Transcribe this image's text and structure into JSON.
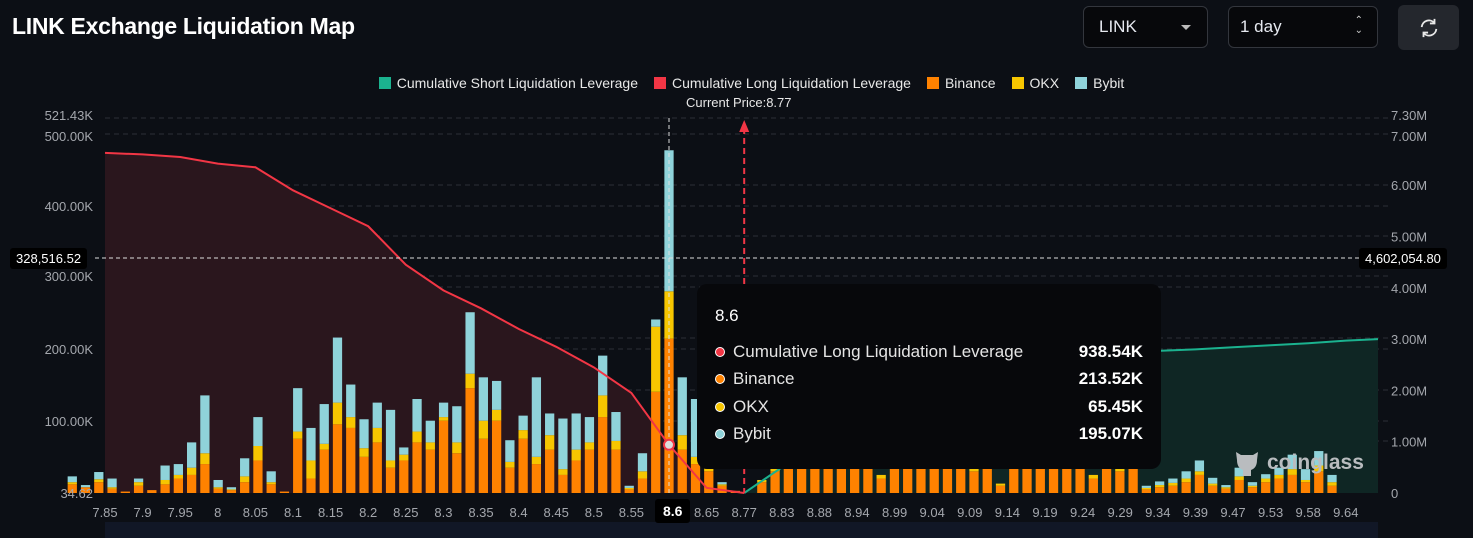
{
  "header": {
    "title": "LINK Exchange Liquidation Map",
    "coin_select": "LINK",
    "period_select": "1 day",
    "refresh_icon": "refresh-icon"
  },
  "legend": [
    {
      "label": "Cumulative Short Liquidation Leverage",
      "color": "#1bb28f"
    },
    {
      "label": "Cumulative Long Liquidation Leverage",
      "color": "#f23645"
    },
    {
      "label": "Binance",
      "color": "#ff8200"
    },
    {
      "label": "OKX",
      "color": "#f7c600"
    },
    {
      "label": "Bybit",
      "color": "#8fd3da"
    }
  ],
  "current_price_label": "Current Price:8.77",
  "crosshair": {
    "left_value": "328,516.52",
    "right_value": "4,602,054.80",
    "x_label": "8.6"
  },
  "tooltip": {
    "title": "8.6",
    "rows": [
      {
        "label": "Cumulative Long Liquidation Leverage",
        "value": "938.54K",
        "color": "#f23645"
      },
      {
        "label": "Binance",
        "value": "213.52K",
        "color": "#ff8200"
      },
      {
        "label": "OKX",
        "value": "65.45K",
        "color": "#f7c600"
      },
      {
        "label": "Bybit",
        "value": "195.07K",
        "color": "#8fd3da"
      }
    ]
  },
  "watermark": "coinglass",
  "chart_data": {
    "type": "bar",
    "grid": true,
    "legend_placement": "top-center",
    "current_price": 8.77,
    "x_tick_labels": [
      "7.85",
      "7.9",
      "7.95",
      "8",
      "8.05",
      "8.1",
      "8.15",
      "8.2",
      "8.25",
      "8.3",
      "8.35",
      "8.4",
      "8.45",
      "8.5",
      "8.55",
      "8.6",
      "8.65",
      "8.77",
      "8.83",
      "8.88",
      "8.94",
      "8.99",
      "9.04",
      "9.09",
      "9.14",
      "9.19",
      "9.24",
      "9.29",
      "9.34",
      "9.39",
      "9.47",
      "9.53",
      "9.58",
      "9.64"
    ],
    "left_axis": {
      "ticks": [
        "34.62",
        "100.00K",
        "200.00K",
        "300.00K",
        "400.00K",
        "500.00K",
        "521.43K"
      ],
      "range": [
        34.62,
        521430
      ]
    },
    "right_axis": {
      "ticks": [
        "0",
        "1.00M",
        "2.00M",
        "3.00M",
        "4.00M",
        "5.00M",
        "6.00M",
        "7.00M",
        "7.30M"
      ],
      "range": [
        0,
        7300000
      ]
    },
    "bars_unit": "K",
    "series": [
      {
        "name": "Binance",
        "values": [
          12,
          8,
          15,
          6,
          2,
          10,
          4,
          12,
          20,
          25,
          40,
          6,
          4,
          15,
          45,
          12,
          2,
          75,
          20,
          60,
          95,
          90,
          50,
          70,
          35,
          45,
          70,
          60,
          100,
          55,
          145,
          75,
          100,
          35,
          75,
          40,
          60,
          25,
          45,
          60,
          105,
          60,
          5,
          20,
          140,
          213.52,
          60,
          40,
          30,
          10,
          3,
          0,
          15,
          30,
          45,
          50,
          48,
          50,
          45,
          40,
          50,
          20,
          48,
          50,
          45,
          40,
          50,
          45,
          30,
          48,
          10,
          50,
          45,
          48,
          50,
          45,
          48,
          20,
          45,
          30,
          50,
          5,
          8,
          10,
          15,
          25,
          10,
          6,
          18,
          8,
          15,
          20,
          25,
          15,
          30,
          10
        ]
      },
      {
        "name": "OKX",
        "values": [
          3,
          0,
          4,
          2,
          0,
          5,
          0,
          6,
          5,
          10,
          15,
          2,
          1,
          8,
          20,
          3,
          0,
          10,
          25,
          8,
          30,
          15,
          12,
          20,
          10,
          8,
          15,
          10,
          5,
          15,
          20,
          25,
          15,
          8,
          12,
          10,
          20,
          8,
          15,
          10,
          30,
          12,
          2,
          10,
          90,
          65.45,
          20,
          10,
          5,
          2,
          0,
          0,
          3,
          5,
          5,
          5,
          5,
          5,
          5,
          5,
          5,
          5,
          5,
          5,
          5,
          5,
          5,
          5,
          5,
          5,
          3,
          5,
          5,
          5,
          5,
          5,
          5,
          5,
          5,
          5,
          5,
          2,
          3,
          4,
          5,
          5,
          3,
          2,
          5,
          2,
          5,
          5,
          8,
          3,
          8,
          5
        ]
      },
      {
        "name": "Bybit",
        "values": [
          8,
          3,
          10,
          12,
          0,
          5,
          0,
          20,
          15,
          35,
          80,
          10,
          3,
          25,
          40,
          15,
          0,
          60,
          45,
          55,
          90,
          45,
          40,
          35,
          70,
          10,
          45,
          30,
          20,
          50,
          85,
          60,
          40,
          30,
          20,
          110,
          30,
          70,
          50,
          35,
          55,
          40,
          3,
          25,
          10,
          195.07,
          80,
          80,
          10,
          3,
          0,
          0,
          0,
          0,
          0,
          0,
          0,
          0,
          0,
          0,
          0,
          0,
          0,
          0,
          0,
          0,
          0,
          0,
          0,
          0,
          0,
          0,
          0,
          0,
          0,
          0,
          0,
          0,
          0,
          0,
          0,
          3,
          5,
          6,
          10,
          15,
          8,
          3,
          12,
          5,
          6,
          10,
          20,
          15,
          20,
          10
        ]
      }
    ],
    "lines": [
      {
        "name": "Cumulative Long Liquidation Leverage",
        "unit": "M",
        "points": [
          [
            "7.85",
            6.63
          ],
          [
            "7.9",
            6.6
          ],
          [
            "7.95",
            6.55
          ],
          [
            "8",
            6.42
          ],
          [
            "8.05",
            6.35
          ],
          [
            "8.1",
            5.9
          ],
          [
            "8.15",
            5.55
          ],
          [
            "8.2",
            5.2
          ],
          [
            "8.25",
            4.45
          ],
          [
            "8.3",
            3.95
          ],
          [
            "8.35",
            3.6
          ],
          [
            "8.4",
            3.2
          ],
          [
            "8.45",
            2.85
          ],
          [
            "8.5",
            2.45
          ],
          [
            "8.55",
            1.95
          ],
          [
            "8.6",
            0.94
          ],
          [
            "8.65",
            0.1
          ],
          [
            "8.77",
            0
          ]
        ]
      },
      {
        "name": "Cumulative Short Liquidation Leverage",
        "unit": "M",
        "points": [
          [
            "8.77",
            0
          ],
          [
            "8.83",
            0.5
          ],
          [
            "8.88",
            1.4
          ],
          [
            "8.94",
            1.9
          ],
          [
            "8.99",
            2.2
          ],
          [
            "9.04",
            2.4
          ],
          [
            "9.09",
            2.5
          ],
          [
            "9.14",
            2.6
          ],
          [
            "9.19",
            2.66
          ],
          [
            "9.24",
            2.72
          ],
          [
            "9.29",
            2.75
          ],
          [
            "9.34",
            2.77
          ],
          [
            "9.39",
            2.8
          ],
          [
            "9.47",
            2.84
          ],
          [
            "9.53",
            2.88
          ],
          [
            "9.58",
            2.92
          ],
          [
            "9.64",
            2.97
          ]
        ]
      }
    ]
  }
}
